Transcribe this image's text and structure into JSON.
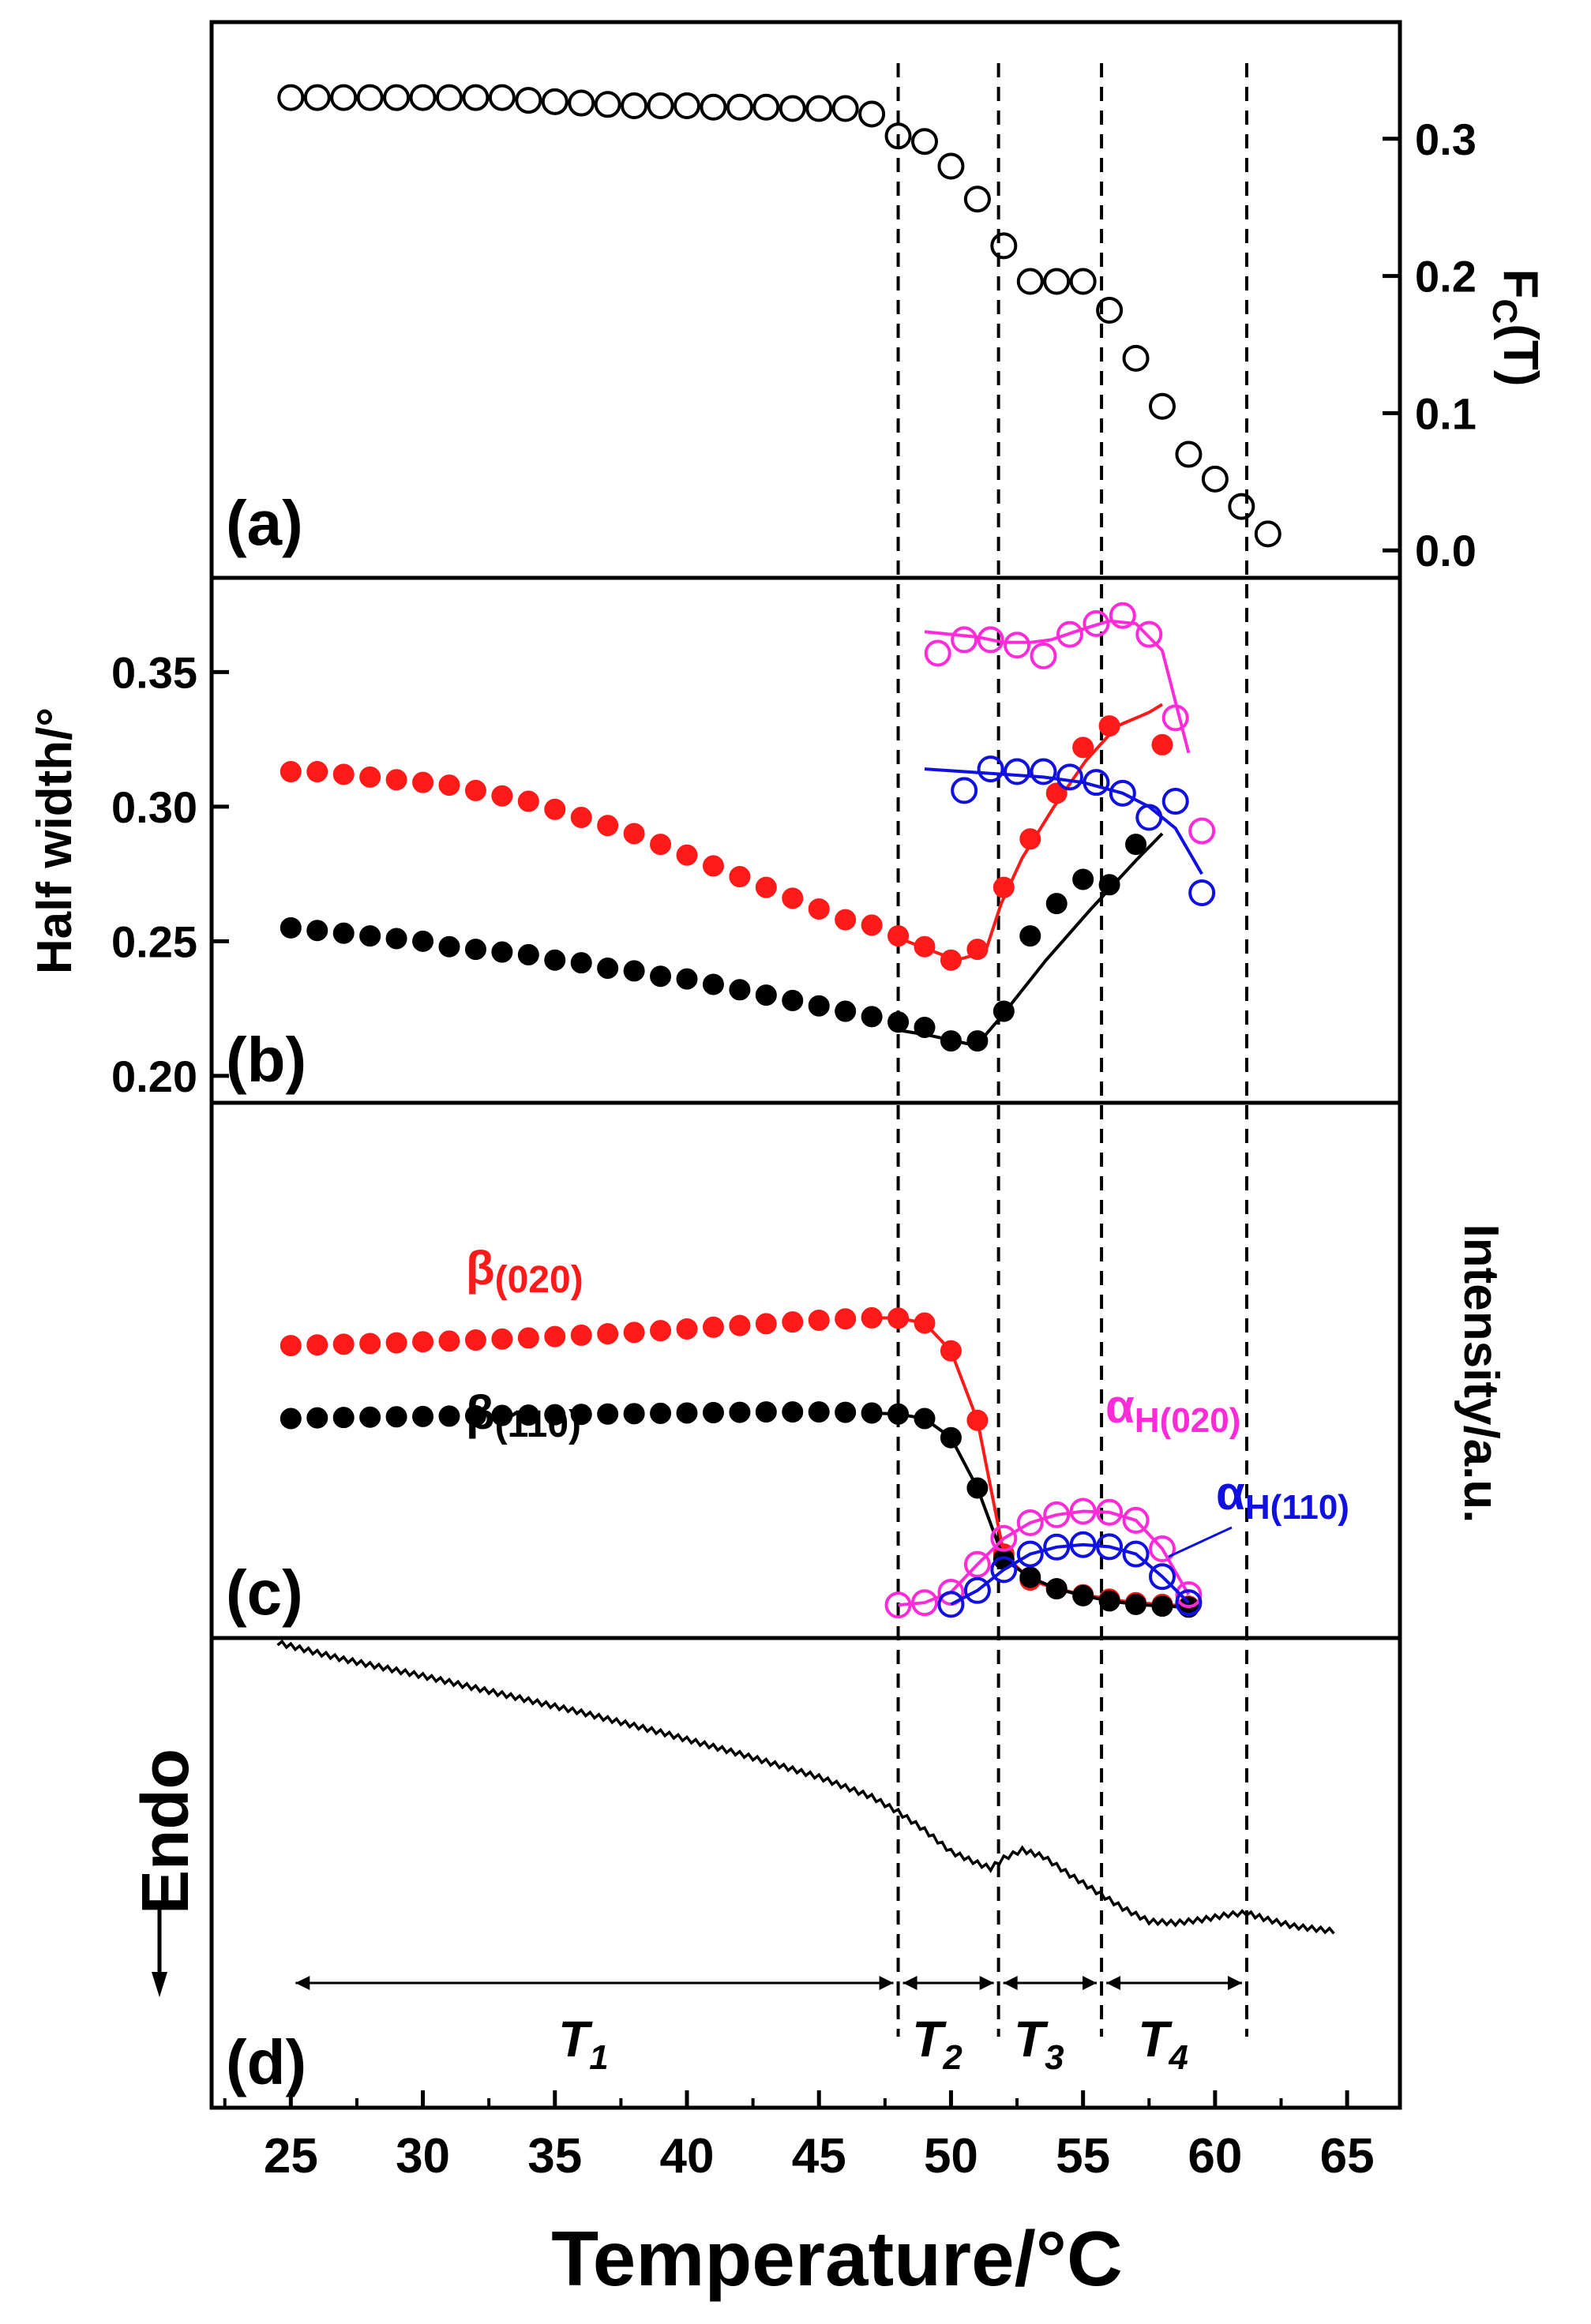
{
  "shared_x": {
    "label": "Temperature/°C",
    "ticks": [
      25,
      30,
      35,
      40,
      45,
      50,
      55,
      60,
      65
    ],
    "range": [
      22,
      67
    ]
  },
  "transition_lines": [
    48.0,
    51.8,
    55.7,
    61.2
  ],
  "colors": {
    "black": "#000000",
    "red": "#ff1a1a",
    "magenta": "#ff2bd9",
    "blue": "#1010e0"
  },
  "chart_data": [
    {
      "panel": "(a)",
      "type": "scatter",
      "ylabel_main": "F",
      "ylabel_sub": "C",
      "ylabel_tail": "(T)",
      "ylim": [
        -0.02,
        0.385
      ],
      "yticks": [
        "0.0",
        "0.1",
        "0.2",
        "0.3"
      ],
      "series": [
        {
          "marker": "open-circle",
          "color": "#000000",
          "x": [
            25,
            26,
            27,
            28,
            29,
            30,
            31,
            32,
            33,
            34,
            35,
            36,
            37,
            38,
            39,
            40,
            41,
            42,
            43,
            44,
            45,
            46,
            47,
            48,
            49,
            50,
            51,
            52,
            53,
            54,
            55,
            56,
            57,
            58,
            59,
            60,
            61,
            62
          ],
          "y": [
            0.33,
            0.33,
            0.33,
            0.33,
            0.33,
            0.33,
            0.33,
            0.33,
            0.33,
            0.328,
            0.327,
            0.326,
            0.325,
            0.324,
            0.324,
            0.324,
            0.323,
            0.323,
            0.323,
            0.322,
            0.322,
            0.322,
            0.318,
            0.302,
            0.298,
            0.28,
            0.256,
            0.222,
            0.196,
            0.196,
            0.196,
            0.175,
            0.14,
            0.105,
            0.07,
            0.052,
            0.032,
            0.012
          ]
        }
      ]
    },
    {
      "panel": "(b)",
      "type": "scatter",
      "ylabel": "Half width/°",
      "ylim": [
        0.19,
        0.385
      ],
      "yticks": [
        "0.20",
        "0.25",
        "0.30",
        "0.35"
      ],
      "series": [
        {
          "marker": "filled-circle",
          "color": "#ff1a1a",
          "x": [
            25,
            26,
            27,
            28,
            29,
            30,
            31,
            32,
            33,
            34,
            35,
            36,
            37,
            38,
            39,
            40,
            41,
            42,
            43,
            44,
            45,
            46,
            47,
            48,
            49,
            50,
            51,
            52,
            53,
            54,
            55,
            56,
            58
          ],
          "y": [
            0.313,
            0.313,
            0.312,
            0.311,
            0.31,
            0.309,
            0.308,
            0.306,
            0.304,
            0.302,
            0.299,
            0.296,
            0.293,
            0.29,
            0.286,
            0.282,
            0.278,
            0.274,
            0.27,
            0.266,
            0.262,
            0.258,
            0.256,
            0.252,
            0.248,
            0.243,
            0.247,
            0.27,
            0.288,
            0.305,
            0.322,
            0.33,
            0.323
          ],
          "fit_x": [
            47.8,
            50.2,
            51.3,
            51.9,
            52.7,
            53.9,
            55.1,
            56.3,
            57.5,
            58.0
          ],
          "fit_y": [
            0.252,
            0.243,
            0.246,
            0.264,
            0.281,
            0.3,
            0.317,
            0.33,
            0.335,
            0.338
          ]
        },
        {
          "marker": "filled-circle",
          "color": "#000000",
          "x": [
            25,
            26,
            27,
            28,
            29,
            30,
            31,
            32,
            33,
            34,
            35,
            36,
            37,
            38,
            39,
            40,
            41,
            42,
            43,
            44,
            45,
            46,
            47,
            48,
            49,
            50,
            51,
            52,
            53,
            54,
            55,
            56,
            57
          ],
          "y": [
            0.255,
            0.254,
            0.253,
            0.252,
            0.251,
            0.25,
            0.248,
            0.247,
            0.246,
            0.245,
            0.243,
            0.242,
            0.24,
            0.239,
            0.237,
            0.236,
            0.234,
            0.232,
            0.23,
            0.228,
            0.226,
            0.224,
            0.222,
            0.22,
            0.218,
            0.213,
            0.213,
            0.224,
            0.252,
            0.264,
            0.273,
            0.271,
            0.286
          ],
          "fit_x": [
            48.0,
            49.2,
            50.6,
            51.2,
            51.9,
            53.6,
            55.3,
            57.0,
            58.0
          ],
          "fit_y": [
            0.217,
            0.215,
            0.212,
            0.214,
            0.222,
            0.243,
            0.262,
            0.28,
            0.29
          ]
        },
        {
          "marker": "open-circle",
          "color": "#ff2bd9",
          "x": [
            49.5,
            50.5,
            51.5,
            52.5,
            53.5,
            54.5,
            55.5,
            56.5,
            57.5,
            58.5,
            59.5
          ],
          "y": [
            0.357,
            0.362,
            0.362,
            0.36,
            0.356,
            0.364,
            0.368,
            0.371,
            0.364,
            0.333,
            0.291
          ],
          "fit_x": [
            49.0,
            51.0,
            52.0,
            53.0,
            53.8,
            55.0,
            56.0,
            57.0,
            58.0,
            59.0
          ],
          "fit_y": [
            0.365,
            0.363,
            0.361,
            0.361,
            0.362,
            0.366,
            0.369,
            0.368,
            0.358,
            0.32
          ]
        },
        {
          "marker": "open-circle",
          "color": "#1010e0",
          "x": [
            50.5,
            51.5,
            52.5,
            53.5,
            54.5,
            55.5,
            56.5,
            57.5,
            58.5,
            59.5
          ],
          "y": [
            0.306,
            0.314,
            0.313,
            0.313,
            0.311,
            0.309,
            0.305,
            0.296,
            0.302,
            0.268
          ],
          "fit_x": [
            49.0,
            50.5,
            52.0,
            53.5,
            55.0,
            56.5,
            57.5,
            58.5,
            59.5
          ],
          "fit_y": [
            0.314,
            0.313,
            0.312,
            0.311,
            0.309,
            0.305,
            0.3,
            0.292,
            0.275
          ]
        }
      ]
    },
    {
      "panel": "(c)",
      "type": "line",
      "ylabel": "Intensity/a.u.",
      "ylim": [
        0,
        1
      ],
      "series": [
        {
          "name_main": "β",
          "name_sub": "(020)",
          "marker": "filled-circle",
          "color": "#ff1a1a",
          "x": [
            25,
            26,
            27,
            28,
            29,
            30,
            31,
            32,
            33,
            34,
            35,
            36,
            37,
            38,
            39,
            40,
            41,
            42,
            43,
            44,
            45,
            46,
            47,
            48,
            49,
            50,
            51,
            52,
            53,
            54,
            55,
            56,
            57,
            58,
            59
          ],
          "y": [
            0.785,
            0.787,
            0.789,
            0.791,
            0.793,
            0.796,
            0.798,
            0.801,
            0.804,
            0.807,
            0.811,
            0.815,
            0.819,
            0.823,
            0.828,
            0.833,
            0.838,
            0.843,
            0.848,
            0.853,
            0.858,
            0.862,
            0.865,
            0.864,
            0.85,
            0.77,
            0.57,
            0.185,
            0.11,
            0.085,
            0.068,
            0.055,
            0.045,
            0.04,
            0.035
          ]
        },
        {
          "name_main": "β",
          "name_sub": "(110)",
          "marker": "filled-circle",
          "color": "#000000",
          "x": [
            25,
            26,
            27,
            28,
            29,
            30,
            31,
            32,
            33,
            34,
            35,
            36,
            37,
            38,
            39,
            40,
            41,
            42,
            43,
            44,
            45,
            46,
            47,
            48,
            49,
            50,
            51,
            52,
            53,
            54,
            55,
            56,
            57,
            58,
            59
          ],
          "y": [
            0.575,
            0.577,
            0.578,
            0.579,
            0.58,
            0.581,
            0.582,
            0.583,
            0.584,
            0.585,
            0.586,
            0.587,
            0.588,
            0.589,
            0.59,
            0.591,
            0.592,
            0.593,
            0.594,
            0.594,
            0.594,
            0.593,
            0.591,
            0.588,
            0.575,
            0.52,
            0.375,
            0.17,
            0.118,
            0.085,
            0.065,
            0.05,
            0.04,
            0.035,
            0.032
          ]
        },
        {
          "name_main": "α",
          "name_sub": "H(020)",
          "marker": "open-circle",
          "color": "#ff2bd9",
          "x": [
            48,
            49,
            50,
            51,
            52,
            53,
            54,
            55,
            56,
            57,
            58,
            59
          ],
          "y": [
            0.038,
            0.045,
            0.075,
            0.155,
            0.23,
            0.275,
            0.298,
            0.308,
            0.305,
            0.282,
            0.2,
            0.068
          ]
        },
        {
          "name_main": "α",
          "name_sub": "H(110)",
          "marker": "open-circle",
          "color": "#1010e0",
          "x": [
            50,
            51,
            52,
            53,
            54,
            55,
            56,
            57,
            58,
            59
          ],
          "y": [
            0.04,
            0.08,
            0.14,
            0.185,
            0.205,
            0.212,
            0.206,
            0.185,
            0.12,
            0.045
          ]
        }
      ]
    },
    {
      "panel": "(d)",
      "type": "line",
      "ylabel": "Endo",
      "series": [
        {
          "color": "#000000",
          "x": [
            24.5,
            27,
            30,
            33,
            36,
            39,
            42,
            45,
            47,
            48,
            49,
            50,
            51,
            51.5,
            52,
            52.7,
            53.5,
            54.5,
            55.5,
            56.5,
            57.5,
            58.5,
            59.5,
            60.5,
            61.2,
            62,
            63,
            64,
            64.5
          ],
          "y": [
            0.95,
            0.9,
            0.85,
            0.795,
            0.74,
            0.68,
            0.615,
            0.545,
            0.485,
            0.44,
            0.385,
            0.32,
            0.285,
            0.27,
            0.3,
            0.325,
            0.305,
            0.25,
            0.2,
            0.15,
            0.11,
            0.105,
            0.115,
            0.13,
            0.135,
            0.115,
            0.095,
            0.085,
            0.08
          ]
        }
      ],
      "regions": [
        {
          "main": "T",
          "sub": "1",
          "from": 25,
          "to": 48.0
        },
        {
          "main": "T",
          "sub": "2",
          "from": 48.0,
          "to": 51.8
        },
        {
          "main": "T",
          "sub": "3",
          "from": 51.8,
          "to": 55.7
        },
        {
          "main": "T",
          "sub": "4",
          "from": 55.7,
          "to": 61.2
        }
      ]
    }
  ]
}
